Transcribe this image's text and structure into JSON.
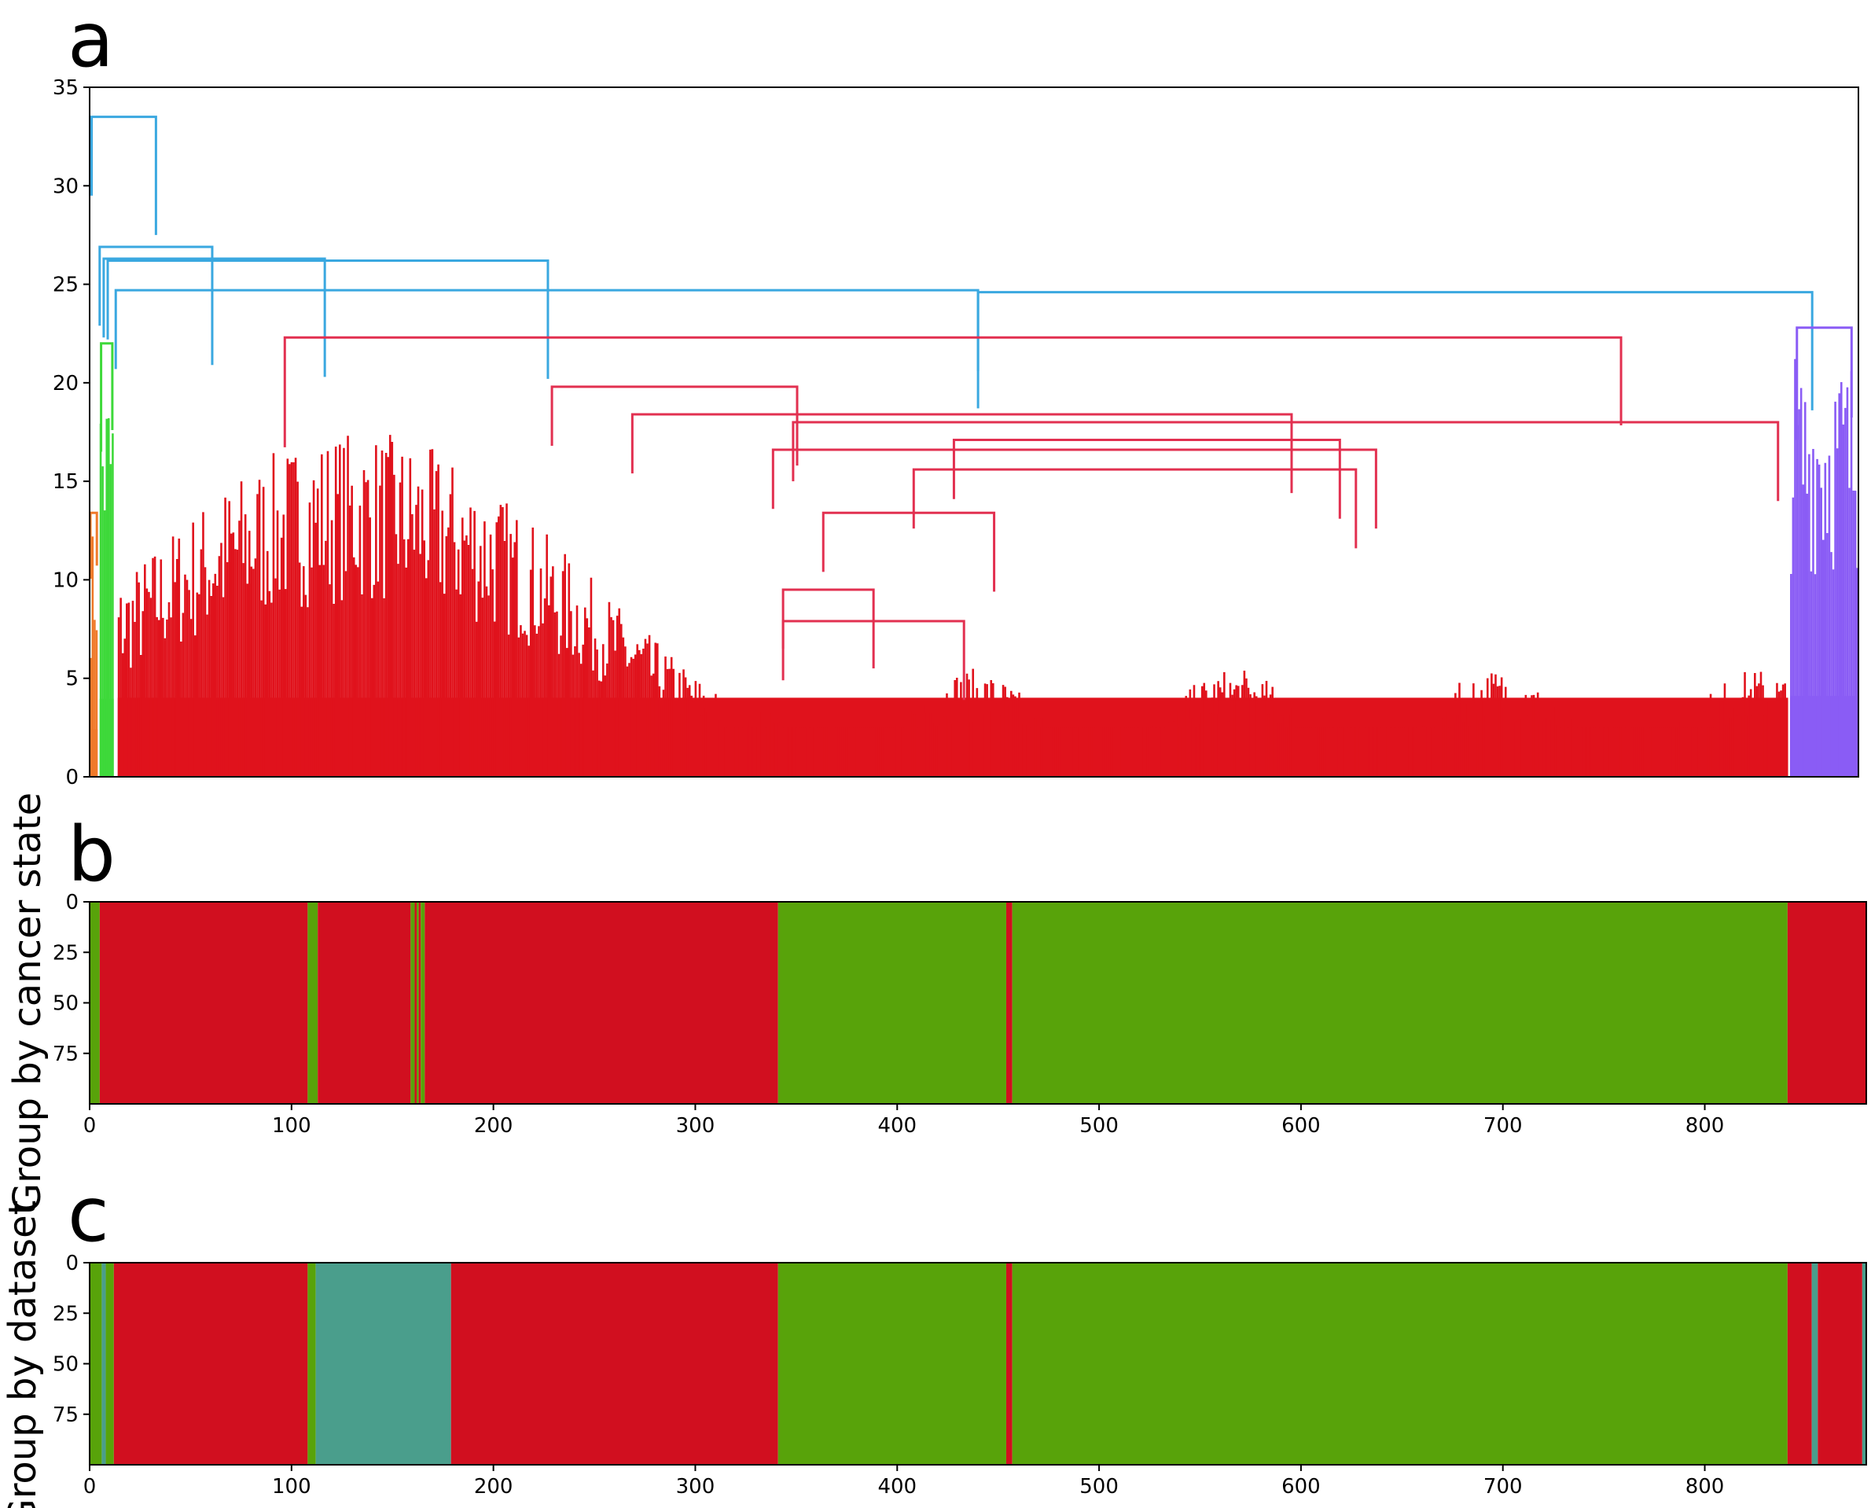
{
  "panels": {
    "a": "a",
    "b": "b",
    "c": "c"
  },
  "chart_data": [
    {
      "type": "dendrogram",
      "panel": "a",
      "ylim": [
        0,
        35
      ],
      "yticks": [
        "0",
        "5",
        "10",
        "15",
        "20",
        "25",
        "30",
        "35"
      ],
      "xticks_shown": false,
      "n_leaves": 880,
      "colors": {
        "orange": "#f07a2a",
        "green": "#3ed93a",
        "blue": "#3aa8e0",
        "red": "#e0121c",
        "red_branch": "#e23050",
        "purple": "#8a5cf5"
      },
      "clusters": [
        {
          "color": "orange",
          "x_range": [
            0,
            4
          ],
          "height": 13.4
        },
        {
          "color": "green",
          "x_range": [
            5,
            12
          ],
          "height": 22.0
        },
        {
          "color": "red",
          "x_range": [
            14,
            845
          ],
          "height": 22.3
        },
        {
          "color": "purple",
          "x_range": [
            846,
            880
          ],
          "height": 22.8
        }
      ],
      "major_merges": [
        {
          "y": 33.5,
          "x_left": 1,
          "x_right": 33
        },
        {
          "y": 26.9,
          "x_left": 5,
          "x_right": 61
        },
        {
          "y": 26.3,
          "x_left": 7,
          "x_right": 117
        },
        {
          "y": 26.2,
          "x_left": 9,
          "x_right": 228
        },
        {
          "y": 24.7,
          "x_left": 13,
          "x_right": 442
        },
        {
          "y": 24.6,
          "x_left": 442,
          "x_right": 857
        },
        {
          "y": 19.8,
          "x_left": 230,
          "x_right": 352
        },
        {
          "y": 18.4,
          "x_left": 270,
          "x_right": 598
        },
        {
          "y": 18.0,
          "x_left": 350,
          "x_right": 840
        },
        {
          "y": 17.1,
          "x_left": 430,
          "x_right": 622
        },
        {
          "y": 16.6,
          "x_left": 340,
          "x_right": 640
        },
        {
          "y": 15.6,
          "x_left": 410,
          "x_right": 630
        },
        {
          "y": 13.4,
          "x_left": 365,
          "x_right": 450
        },
        {
          "y": 9.5,
          "x_left": 345,
          "x_right": 390
        },
        {
          "y": 7.9,
          "x_left": 345,
          "x_right": 435
        }
      ]
    },
    {
      "type": "heatmap",
      "panel": "b",
      "ylabel": "Group by cancer state",
      "xlim": [
        0,
        880
      ],
      "ylim": [
        0,
        100
      ],
      "xticks": [
        "0",
        "100",
        "200",
        "300",
        "400",
        "500",
        "600",
        "700",
        "800"
      ],
      "yticks": [
        "0",
        "25",
        "50",
        "75"
      ],
      "colors": {
        "cancer": "#d10f1f",
        "normal": "#58a30a"
      },
      "segments": [
        {
          "start": 0,
          "end": 5,
          "class": "normal"
        },
        {
          "start": 5,
          "end": 108,
          "class": "cancer"
        },
        {
          "start": 108,
          "end": 113,
          "class": "normal"
        },
        {
          "start": 113,
          "end": 159,
          "class": "cancer"
        },
        {
          "start": 159,
          "end": 161,
          "class": "normal"
        },
        {
          "start": 161,
          "end": 162,
          "class": "cancer"
        },
        {
          "start": 162,
          "end": 163,
          "class": "normal"
        },
        {
          "start": 163,
          "end": 164,
          "class": "cancer"
        },
        {
          "start": 164,
          "end": 166,
          "class": "normal"
        },
        {
          "start": 166,
          "end": 341,
          "class": "cancer"
        },
        {
          "start": 341,
          "end": 454,
          "class": "normal"
        },
        {
          "start": 454,
          "end": 457,
          "class": "cancer"
        },
        {
          "start": 457,
          "end": 841,
          "class": "normal"
        },
        {
          "start": 841,
          "end": 880,
          "class": "cancer"
        }
      ]
    },
    {
      "type": "heatmap",
      "panel": "c",
      "ylabel": "Group by dataset",
      "xlim": [
        0,
        880
      ],
      "ylim": [
        0,
        100
      ],
      "xticks": [
        "0",
        "100",
        "200",
        "300",
        "400",
        "500",
        "600",
        "700",
        "800"
      ],
      "yticks": [
        "0",
        "25",
        "50",
        "75"
      ],
      "colors": {
        "dataset_red": "#d10f1f",
        "dataset_green": "#58a30a",
        "dataset_teal": "#4a9e8c"
      },
      "segments": [
        {
          "start": 0,
          "end": 6,
          "class": "dataset_green"
        },
        {
          "start": 6,
          "end": 8,
          "class": "dataset_teal"
        },
        {
          "start": 8,
          "end": 12,
          "class": "dataset_green"
        },
        {
          "start": 12,
          "end": 108,
          "class": "dataset_red"
        },
        {
          "start": 108,
          "end": 112,
          "class": "dataset_green"
        },
        {
          "start": 112,
          "end": 179,
          "class": "dataset_teal"
        },
        {
          "start": 179,
          "end": 341,
          "class": "dataset_red"
        },
        {
          "start": 341,
          "end": 454,
          "class": "dataset_green"
        },
        {
          "start": 454,
          "end": 457,
          "class": "dataset_red"
        },
        {
          "start": 457,
          "end": 841,
          "class": "dataset_green"
        },
        {
          "start": 841,
          "end": 853,
          "class": "dataset_red"
        },
        {
          "start": 853,
          "end": 856,
          "class": "dataset_teal"
        },
        {
          "start": 856,
          "end": 878,
          "class": "dataset_red"
        },
        {
          "start": 878,
          "end": 880,
          "class": "dataset_teal"
        }
      ]
    }
  ]
}
